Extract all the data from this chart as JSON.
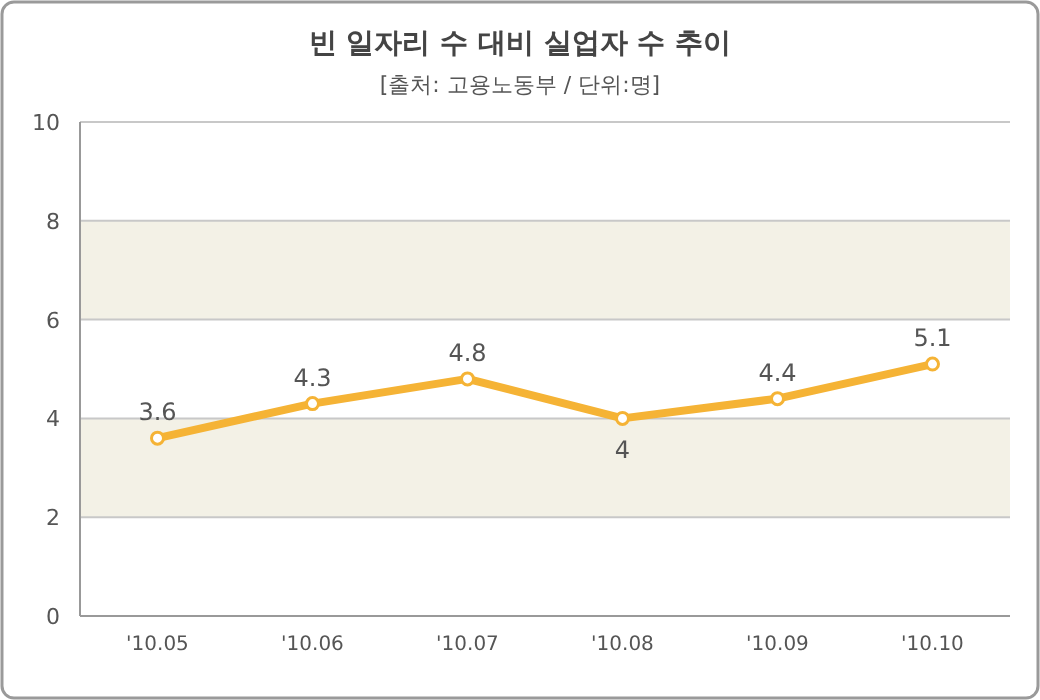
{
  "chart_data": {
    "type": "line",
    "title": "빈 일자리 수 대비 실업자 수 추이",
    "subtitle": "[출처: 고용노동부 / 단위:명]",
    "categories": [
      "'10.05",
      "'10.06",
      "'10.07",
      "'10.08",
      "'10.09",
      "'10.10"
    ],
    "series": [
      {
        "color": "#f5b335",
        "values": [
          3.6,
          4.3,
          4.8,
          4,
          4.4,
          5.1
        ]
      }
    ],
    "ylim": [
      0,
      10
    ],
    "yticks": [
      0,
      2,
      4,
      6,
      8,
      10
    ],
    "grid": "y",
    "marker": "circle",
    "line_style": "solid",
    "data_labels": true,
    "bands": [
      {
        "axis": "y",
        "from": 2,
        "to": 4,
        "color": "#f3f1e6"
      },
      {
        "axis": "y",
        "from": 6,
        "to": 8,
        "color": "#f3f1e6"
      }
    ]
  }
}
